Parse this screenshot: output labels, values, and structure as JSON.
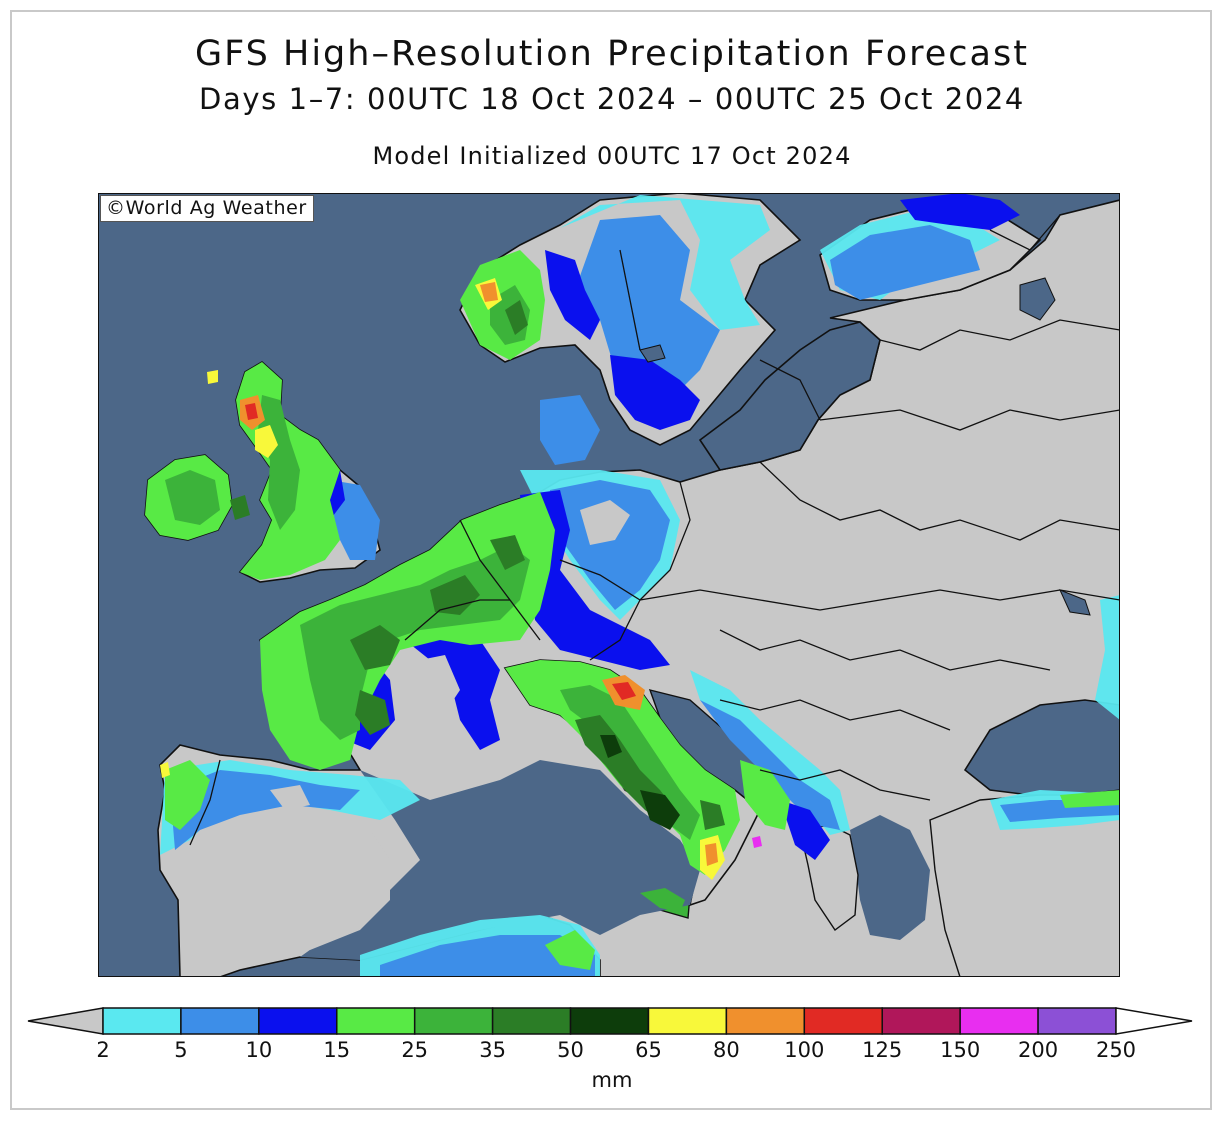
{
  "title": "GFS High–Resolution Precipitation Forecast",
  "subtitle": "Days 1–7: 00UTC 18 Oct 2024 – 00UTC 25 Oct 2024",
  "init_line": "Model Initialized 00UTC 17 Oct 2024",
  "credit": "©World Ag Weather",
  "legend": {
    "unit": "mm",
    "ticks": [
      "2",
      "5",
      "10",
      "15",
      "25",
      "35",
      "50",
      "65",
      "80",
      "100",
      "125",
      "150",
      "200",
      "250"
    ],
    "colors": [
      "#5ae8f0",
      "#3d8ee8",
      "#0a10ee",
      "#58ea45",
      "#3cb33a",
      "#2b7d26",
      "#0d3d0b",
      "#f8f83a",
      "#f0902d",
      "#e12a24",
      "#b0175a",
      "#e82ef0",
      "#8c50d6"
    ],
    "below_color": "#c8c8c8",
    "above_color": "#ffffff"
  },
  "map_colors": {
    "ocean": "#4c6788",
    "land_dry": "#c8c8c8",
    "border": "#111111"
  }
}
